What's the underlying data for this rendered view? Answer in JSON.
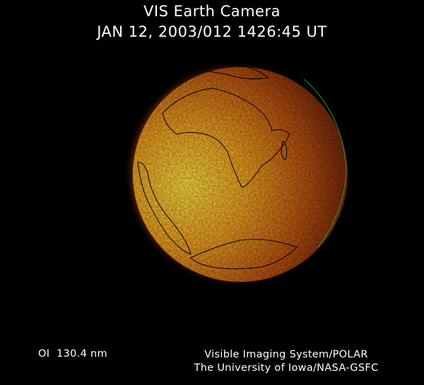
{
  "header": {
    "title": "VIS Earth Camera",
    "timestamp": "JAN 12, 2003/012 1426:45 UT"
  },
  "footer": {
    "wavelength": "OI  130.4 nm",
    "instrument": "Visible Imaging System/POLAR",
    "institution": "The University of Iowa/NASA-GSFC"
  },
  "image": {
    "subject": "Earth far-ultraviolet image",
    "colors": {
      "bright": "#ffe040",
      "mid": "#d07010",
      "dark": "#400800",
      "coastline": "#000000",
      "limb_outline": "#20a020"
    }
  }
}
